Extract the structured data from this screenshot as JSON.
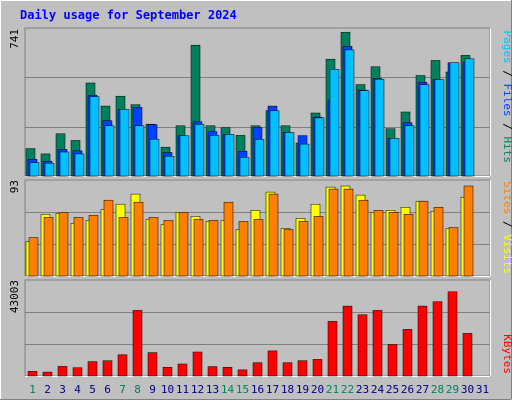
{
  "title": "Daily usage for September 2024",
  "colors": {
    "background": "#c0c0c0",
    "title": "#0000ff",
    "hits": "#00805c",
    "files": "#0040ff",
    "pages": "#00c0ff",
    "visits": "#ffff00",
    "sites": "#ff8000",
    "kbytes": "#ff0000",
    "weekend_day_label": "#00805c",
    "weekday_label": "#000080"
  },
  "chart_data": [
    {
      "type": "bar",
      "name": "hits-files-pages",
      "categories": [
        "1",
        "2",
        "3",
        "4",
        "5",
        "6",
        "7",
        "8",
        "9",
        "10",
        "11",
        "12",
        "13",
        "14",
        "15",
        "16",
        "17",
        "18",
        "19",
        "20",
        "21",
        "22",
        "23",
        "24",
        "25",
        "26",
        "27",
        "28",
        "29",
        "30",
        "31"
      ],
      "ymax_label": "741",
      "ylim": [
        0,
        741
      ],
      "series": [
        {
          "name": "Hits",
          "values": [
            139,
            112,
            214,
            180,
            472,
            355,
            405,
            362,
            263,
            146,
            255,
            664,
            255,
            245,
            206,
            255,
            332,
            255,
            167,
            320,
            593,
            730,
            464,
            554,
            240,
            325,
            510,
            586,
            528,
            612,
            0
          ]
        },
        {
          "name": "Files",
          "values": [
            85,
            75,
            135,
            128,
            410,
            280,
            338,
            348,
            261,
            120,
            204,
            275,
            225,
            211,
            126,
            246,
            355,
            221,
            205,
            299,
            385,
            658,
            436,
            495,
            191,
            270,
            475,
            489,
            575,
            576,
            0
          ]
        },
        {
          "name": "Pages",
          "values": [
            68,
            65,
            122,
            112,
            403,
            255,
            338,
            255,
            187,
            100,
            204,
            262,
            206,
            211,
            95,
            186,
            331,
            221,
            162,
            295,
            541,
            640,
            433,
            491,
            191,
            255,
            464,
            489,
            575,
            595,
            0
          ]
        }
      ],
      "legend": [
        "Pages",
        "Files",
        "Hits"
      ]
    },
    {
      "type": "bar",
      "name": "visits-sites",
      "categories": [
        "1",
        "2",
        "3",
        "4",
        "5",
        "6",
        "7",
        "8",
        "9",
        "10",
        "11",
        "12",
        "13",
        "14",
        "15",
        "16",
        "17",
        "18",
        "19",
        "20",
        "21",
        "22",
        "23",
        "24",
        "25",
        "26",
        "27",
        "28",
        "29",
        "30",
        "31"
      ],
      "ymax_label": "93",
      "ylim": [
        0,
        93
      ],
      "series": [
        {
          "name": "Visits",
          "values": [
            34,
            61,
            62,
            52,
            55,
            66,
            71,
            81,
            56,
            51,
            63,
            59,
            54,
            55,
            46,
            65,
            83,
            47,
            57,
            71,
            88,
            89,
            80,
            63,
            65,
            68,
            74,
            64,
            47,
            78,
            0
          ]
        },
        {
          "name": "Sites",
          "values": [
            38,
            58,
            63,
            58,
            60,
            75,
            58,
            73,
            58,
            55,
            63,
            56,
            55,
            73,
            54,
            56,
            81,
            46,
            54,
            59,
            86,
            86,
            75,
            65,
            63,
            61,
            74,
            68,
            48,
            89,
            0
          ]
        }
      ],
      "legend": [
        "Sites",
        "Visits"
      ]
    },
    {
      "type": "bar",
      "name": "kbytes",
      "categories": [
        "1",
        "2",
        "3",
        "4",
        "5",
        "6",
        "7",
        "8",
        "9",
        "10",
        "11",
        "12",
        "13",
        "14",
        "15",
        "16",
        "17",
        "18",
        "19",
        "20",
        "21",
        "22",
        "23",
        "24",
        "25",
        "26",
        "27",
        "28",
        "29",
        "30",
        "31"
      ],
      "ymax_label": "43003",
      "ylim": [
        0,
        43003
      ],
      "series": [
        {
          "name": "KBytes",
          "values": [
            2100,
            1800,
            4400,
            3800,
            6600,
            7000,
            9700,
            30000,
            10700,
            4000,
            5500,
            11000,
            4300,
            4000,
            2800,
            6100,
            11500,
            6100,
            7000,
            7600,
            25000,
            32000,
            28000,
            30000,
            14400,
            21300,
            32000,
            34000,
            38500,
            19500,
            0
          ]
        }
      ],
      "legend": [
        "KBytes"
      ]
    }
  ],
  "day_labels_green": [
    1,
    7,
    8,
    14,
    15,
    21,
    22,
    28,
    29
  ]
}
